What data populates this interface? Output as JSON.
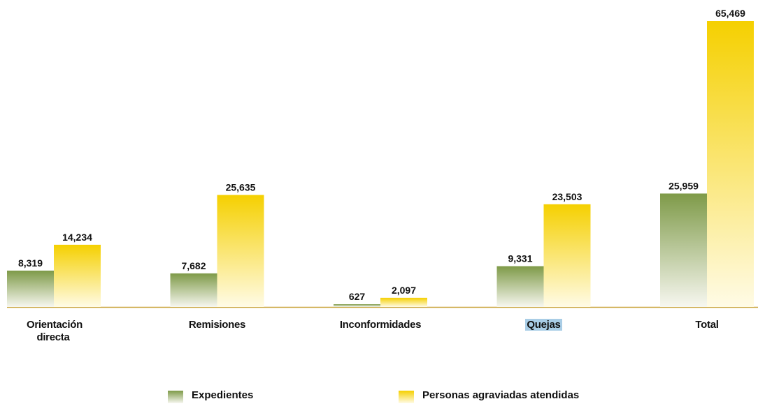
{
  "chart_data": {
    "type": "bar",
    "categories": [
      "Orientación directa",
      "Remisiones",
      "Inconformidades",
      "Quejas",
      "Total"
    ],
    "series": [
      {
        "name": "Expedientes",
        "color": "#7e9a48",
        "values": [
          8319,
          7682,
          627,
          9331,
          25959
        ],
        "value_labels": [
          "8,319",
          "7,682",
          "627",
          "9,331",
          "25,959"
        ]
      },
      {
        "name": "Personas agraviadas atendidas",
        "color": "#f5d000",
        "values": [
          14234,
          25635,
          2097,
          23503,
          65469
        ],
        "value_labels": [
          "14,234",
          "25,635",
          "2,097",
          "23,503",
          "65,469"
        ]
      }
    ]
  }
}
